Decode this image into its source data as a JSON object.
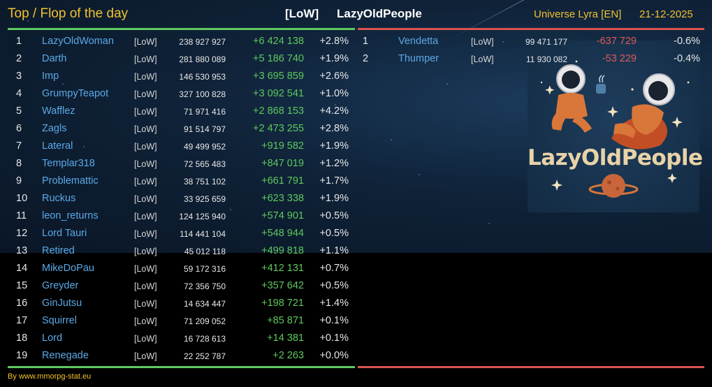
{
  "header": {
    "title": "Top / Flop of the day",
    "tag": "[LoW]",
    "alliance": "LazyOldPeople",
    "universe": "Universe Lyra [EN]",
    "date": "21-12-2025"
  },
  "top": [
    {
      "rank": "1",
      "name": "LazyOldWoman",
      "tag": "[LoW]",
      "points": "238 927 927",
      "change": "+6 424 138",
      "pct": "+2.8%"
    },
    {
      "rank": "2",
      "name": "Darth",
      "tag": "[LoW]",
      "points": "281 880 089",
      "change": "+5 186 740",
      "pct": "+1.9%"
    },
    {
      "rank": "3",
      "name": "Imp",
      "tag": "[LoW]",
      "points": "146 530 953",
      "change": "+3 695 859",
      "pct": "+2.6%"
    },
    {
      "rank": "4",
      "name": "GrumpyTeapot",
      "tag": "[LoW]",
      "points": "327 100 828",
      "change": "+3 092 541",
      "pct": "+1.0%"
    },
    {
      "rank": "5",
      "name": "Wafflez",
      "tag": "[LoW]",
      "points": "71 971 416",
      "change": "+2 868 153",
      "pct": "+4.2%"
    },
    {
      "rank": "6",
      "name": "Zagls",
      "tag": "[LoW]",
      "points": "91 514 797",
      "change": "+2 473 255",
      "pct": "+2.8%"
    },
    {
      "rank": "7",
      "name": "Lateral",
      "tag": "[LoW]",
      "points": "49 499 952",
      "change": "+919 582",
      "pct": "+1.9%"
    },
    {
      "rank": "8",
      "name": "Templar318",
      "tag": "[LoW]",
      "points": "72 565 483",
      "change": "+847 019",
      "pct": "+1.2%"
    },
    {
      "rank": "9",
      "name": "Problemattic",
      "tag": "[LoW]",
      "points": "38 751 102",
      "change": "+661 791",
      "pct": "+1.7%"
    },
    {
      "rank": "10",
      "name": "Ruckus",
      "tag": "[LoW]",
      "points": "33 925 659",
      "change": "+623 338",
      "pct": "+1.9%"
    },
    {
      "rank": "11",
      "name": "leon_returns",
      "tag": "[LoW]",
      "points": "124 125 940",
      "change": "+574 901",
      "pct": "+0.5%"
    },
    {
      "rank": "12",
      "name": "Lord Tauri",
      "tag": "[LoW]",
      "points": "114 441 104",
      "change": "+548 944",
      "pct": "+0.5%"
    },
    {
      "rank": "13",
      "name": "Retired",
      "tag": "[LoW]",
      "points": "45 012 118",
      "change": "+499 818",
      "pct": "+1.1%"
    },
    {
      "rank": "14",
      "name": "MikeDoPau",
      "tag": "[LoW]",
      "points": "59 172 316",
      "change": "+412 131",
      "pct": "+0.7%"
    },
    {
      "rank": "15",
      "name": "Greyder",
      "tag": "[LoW]",
      "points": "72 356 750",
      "change": "+357 642",
      "pct": "+0.5%"
    },
    {
      "rank": "16",
      "name": "GinJutsu",
      "tag": "[LoW]",
      "points": "14 634 447",
      "change": "+198 721",
      "pct": "+1.4%"
    },
    {
      "rank": "17",
      "name": "Squirrel",
      "tag": "[LoW]",
      "points": "71 209 052",
      "change": "+85 871",
      "pct": "+0.1%"
    },
    {
      "rank": "18",
      "name": "Lord",
      "tag": "[LoW]",
      "points": "16 728 613",
      "change": "+14 381",
      "pct": "+0.1%"
    },
    {
      "rank": "19",
      "name": "Renegade",
      "tag": "[LoW]",
      "points": "22 252 787",
      "change": "+2 263",
      "pct": "+0.0%"
    }
  ],
  "flop": [
    {
      "rank": "1",
      "name": "Vendetta",
      "tag": "[LoW]",
      "points": "99 471 177",
      "change": "-637 729",
      "pct": "-0.6%"
    },
    {
      "rank": "2",
      "name": "Thumper",
      "tag": "[LoW]",
      "points": "11 930 082",
      "change": "-53 229",
      "pct": "-0.4%"
    }
  ],
  "logo": {
    "text": "LazyOldPeople",
    "icon": "astronauts-logo-icon"
  },
  "footer": {
    "text": "By www.mmorpg-stat.eu"
  },
  "colors": {
    "accent": "#f2c12e",
    "name": "#5aa9e6",
    "gain": "#5ec95e",
    "loss": "#e05a5a",
    "top_line": "#5ec95e",
    "flop_line": "#d9534f"
  }
}
